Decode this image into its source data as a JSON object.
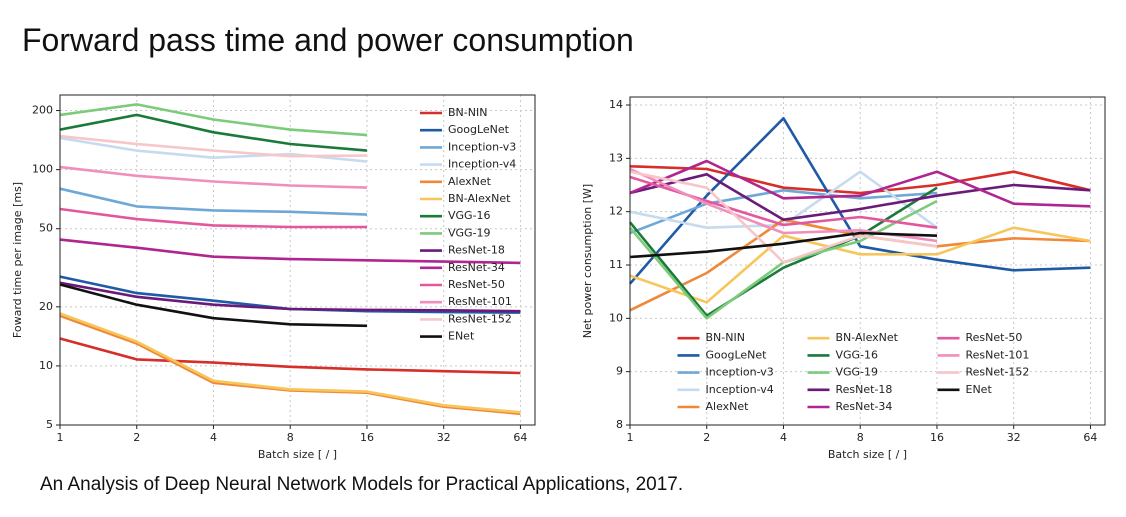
{
  "slide": {
    "title": "Forward pass time and power consumption",
    "caption": "An Analysis of Deep Neural Network Models for Practical Applications, 2017."
  },
  "chart_data": [
    {
      "type": "line",
      "xlabel": "Batch size [ / ]",
      "ylabel": "Foward time per image [ms]",
      "x": [
        1,
        2,
        4,
        8,
        16,
        32,
        64
      ],
      "xscale": "log",
      "xlim": [
        1,
        73
      ],
      "xticks": [
        1,
        2,
        4,
        8,
        16,
        32,
        64
      ],
      "yscale": "log",
      "ylim": [
        5,
        240
      ],
      "yticks": [
        5,
        10,
        20,
        50,
        100,
        200
      ],
      "grid": true,
      "legend": "upper right",
      "legend_columns": 1,
      "series": [
        {
          "name": "BN-NIN",
          "color": "#d62e28",
          "values": [
            13.8,
            10.8,
            10.4,
            9.9,
            9.6,
            9.4,
            9.2
          ]
        },
        {
          "name": "GoogLeNet",
          "color": "#1f5aa6",
          "values": [
            28.5,
            23.5,
            21.5,
            19.5,
            19,
            18.8,
            18.7
          ]
        },
        {
          "name": "Inception-v3",
          "color": "#6fa8d6",
          "values": [
            80,
            65,
            62,
            61,
            59,
            null,
            null
          ]
        },
        {
          "name": "Inception-v4",
          "color": "#c6dbef",
          "values": [
            145,
            125,
            115,
            120,
            110,
            null,
            null
          ]
        },
        {
          "name": "AlexNet",
          "color": "#f0883a",
          "values": [
            18,
            13,
            8.2,
            7.5,
            7.3,
            6.2,
            5.7
          ]
        },
        {
          "name": "BN-AlexNet",
          "color": "#f7c65a",
          "values": [
            18.5,
            13.3,
            8.4,
            7.6,
            7.4,
            6.3,
            5.8
          ]
        },
        {
          "name": "VGG-16",
          "color": "#1b7a3a",
          "values": [
            160,
            190,
            155,
            135,
            125,
            null,
            null
          ]
        },
        {
          "name": "VGG-19",
          "color": "#7ccb7a",
          "values": [
            190,
            215,
            180,
            160,
            150,
            null,
            null
          ]
        },
        {
          "name": "ResNet-18",
          "color": "#6a1b7a",
          "values": [
            26.5,
            22.5,
            20.5,
            19.5,
            19.3,
            19.2,
            19
          ]
        },
        {
          "name": "ResNet-34",
          "color": "#b0258f",
          "values": [
            44,
            40,
            36,
            35,
            34.5,
            34,
            33.5
          ]
        },
        {
          "name": "ResNet-50",
          "color": "#e3579c",
          "values": [
            63,
            56,
            52,
            51,
            51,
            null,
            null
          ]
        },
        {
          "name": "ResNet-101",
          "color": "#f08ebd",
          "values": [
            103,
            93,
            87,
            83,
            81,
            null,
            null
          ]
        },
        {
          "name": "ResNet-152",
          "color": "#f7c6c8",
          "values": [
            148,
            135,
            125,
            117,
            118,
            null,
            null
          ]
        },
        {
          "name": "ENet",
          "color": "#111111",
          "values": [
            26,
            20.5,
            17.5,
            16.3,
            16,
            null,
            null
          ]
        }
      ]
    },
    {
      "type": "line",
      "xlabel": "Batch size [ / ]",
      "ylabel": "Net power consumption [W]",
      "x": [
        1,
        2,
        4,
        8,
        16,
        32,
        64
      ],
      "xscale": "log",
      "xlim": [
        1,
        73
      ],
      "xticks": [
        1,
        2,
        4,
        8,
        16,
        32,
        64
      ],
      "yscale": "linear",
      "ylim": [
        8,
        14.15
      ],
      "yticks": [
        8,
        9,
        10,
        11,
        12,
        13,
        14
      ],
      "grid": true,
      "legend": "lower center",
      "legend_columns": 3,
      "series": [
        {
          "name": "BN-NIN",
          "color": "#d62e28",
          "values": [
            12.85,
            12.8,
            12.45,
            12.35,
            12.5,
            12.75,
            12.4
          ]
        },
        {
          "name": "GoogLeNet",
          "color": "#1f5aa6",
          "values": [
            10.65,
            12.3,
            13.75,
            11.35,
            11.1,
            10.9,
            10.95
          ]
        },
        {
          "name": "Inception-v3",
          "color": "#6fa8d6",
          "values": [
            11.6,
            12.15,
            12.4,
            12.25,
            12.35,
            null,
            null
          ]
        },
        {
          "name": "Inception-v4",
          "color": "#c6dbef",
          "values": [
            12.0,
            11.7,
            11.75,
            12.75,
            11.7,
            null,
            null
          ]
        },
        {
          "name": "AlexNet",
          "color": "#f0883a",
          "values": [
            10.15,
            10.85,
            11.85,
            11.55,
            11.35,
            11.5,
            11.45
          ]
        },
        {
          "name": "BN-AlexNet",
          "color": "#f7c65a",
          "values": [
            10.8,
            10.3,
            11.55,
            11.2,
            11.2,
            11.7,
            11.45
          ]
        },
        {
          "name": "VGG-16",
          "color": "#1b7a3a",
          "values": [
            11.8,
            10.05,
            10.95,
            11.55,
            12.45,
            null,
            null
          ]
        },
        {
          "name": "VGG-19",
          "color": "#7ccb7a",
          "values": [
            11.7,
            10.0,
            11.05,
            11.45,
            12.2,
            null,
            null
          ]
        },
        {
          "name": "ResNet-18",
          "color": "#6a1b7a",
          "values": [
            12.35,
            12.7,
            11.85,
            12.05,
            12.3,
            12.5,
            12.4
          ]
        },
        {
          "name": "ResNet-34",
          "color": "#b0258f",
          "values": [
            12.35,
            12.95,
            12.25,
            12.3,
            12.75,
            12.15,
            12.1
          ]
        },
        {
          "name": "ResNet-50",
          "color": "#e3579c",
          "values": [
            12.65,
            12.2,
            11.75,
            11.9,
            11.7,
            null,
            null
          ]
        },
        {
          "name": "ResNet-101",
          "color": "#f08ebd",
          "values": [
            12.8,
            12.15,
            11.6,
            11.65,
            11.45,
            null,
            null
          ]
        },
        {
          "name": "ResNet-152",
          "color": "#f7c6c8",
          "values": [
            12.75,
            12.45,
            11.05,
            11.55,
            11.35,
            null,
            null
          ]
        },
        {
          "name": "ENet",
          "color": "#111111",
          "values": [
            11.15,
            11.25,
            11.4,
            11.6,
            11.55,
            null,
            null
          ]
        }
      ]
    }
  ]
}
